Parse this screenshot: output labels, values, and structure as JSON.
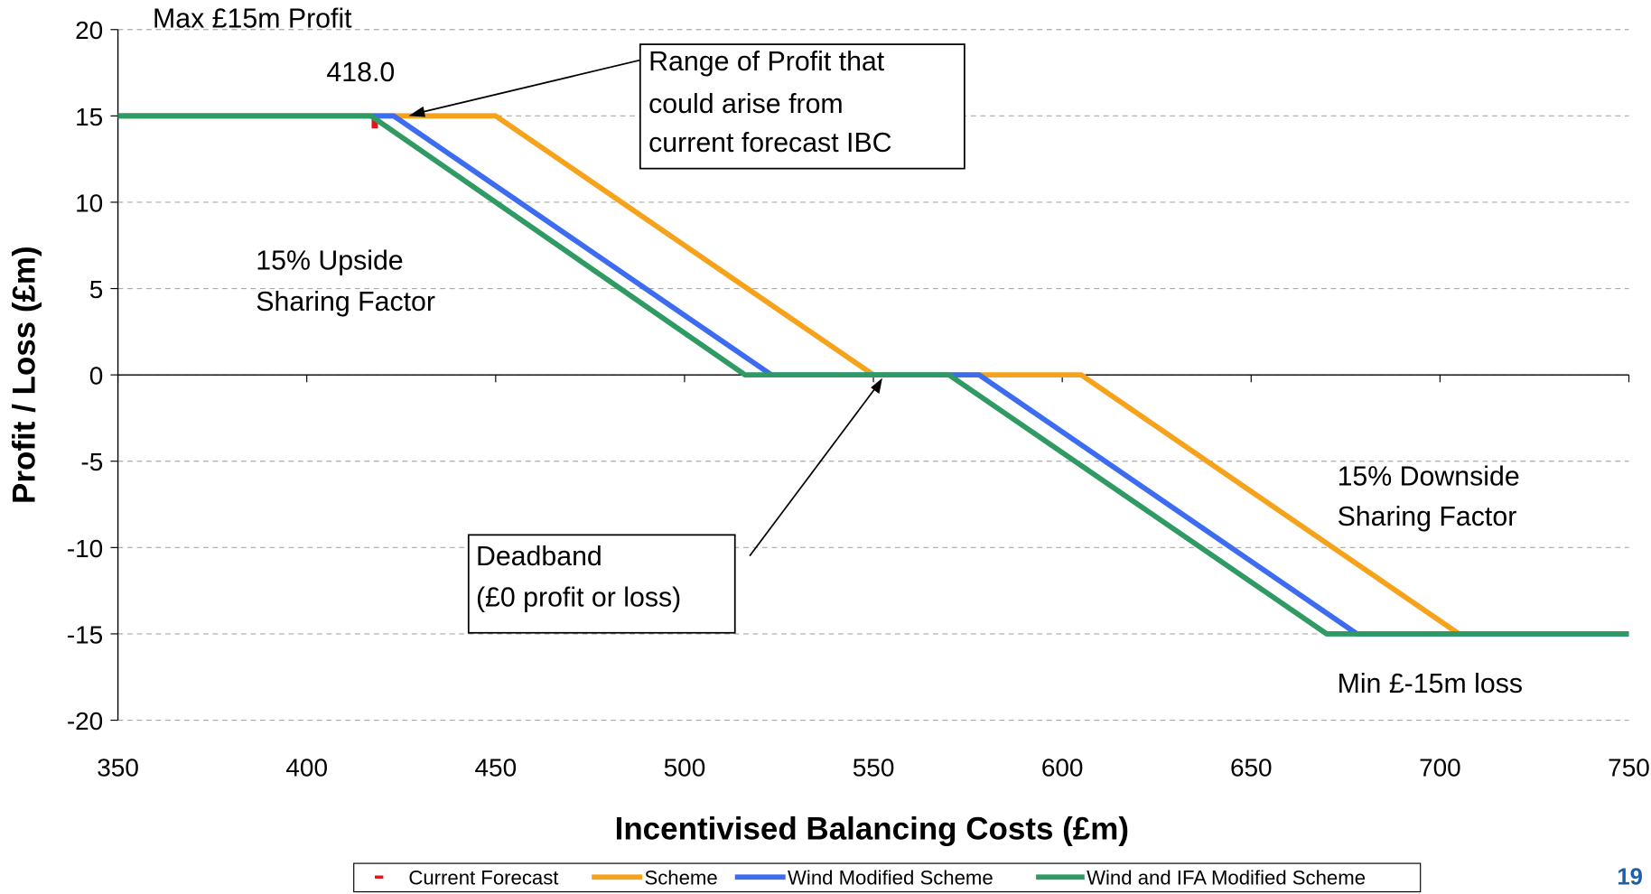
{
  "chart_data": {
    "type": "line",
    "xlabel": "Incentivised Balancing Costs (£m)",
    "ylabel": "Profit / Loss (£m)",
    "xlim": [
      350,
      750
    ],
    "ylim": [
      -20,
      20
    ],
    "xticks": [
      350,
      400,
      450,
      500,
      550,
      600,
      650,
      700,
      750
    ],
    "yticks": [
      -20,
      -15,
      -10,
      -5,
      0,
      5,
      10,
      15,
      20
    ],
    "grid": true,
    "legend": "bottom",
    "series": [
      {
        "name": "Current Forecast",
        "color": "#e8141c",
        "marker": "dash",
        "x": [
          418
        ],
        "values": [
          14.7
        ]
      },
      {
        "name": "Scheme",
        "color": "#f7a21b",
        "x": [
          350,
          450,
          550,
          605,
          705,
          750
        ],
        "values": [
          15,
          15,
          0,
          0,
          -15,
          -15
        ]
      },
      {
        "name": "Wind Modified Scheme",
        "color": "#3d6cf0",
        "x": [
          350,
          423,
          523,
          578,
          678,
          750
        ],
        "values": [
          15,
          15,
          0,
          0,
          -15,
          -15
        ]
      },
      {
        "name": "Wind and IFA Modified Scheme",
        "color": "#2f9a63",
        "x": [
          350,
          417,
          516,
          570,
          670,
          750
        ],
        "values": [
          15,
          15,
          0,
          0,
          -15,
          -15
        ]
      }
    ],
    "annotations": [
      [
        "Max £15m Profit"
      ],
      [
        "418.0"
      ],
      [
        "Range of Profit that",
        "could arise from",
        "current forecast IBC"
      ],
      [
        "15% Upside",
        "Sharing Factor"
      ],
      [
        "Deadband",
        "(£0 profit or loss)"
      ],
      [
        "15% Downside",
        "Sharing Factor"
      ],
      [
        "Min £-15m loss"
      ]
    ],
    "page_number": "19"
  }
}
